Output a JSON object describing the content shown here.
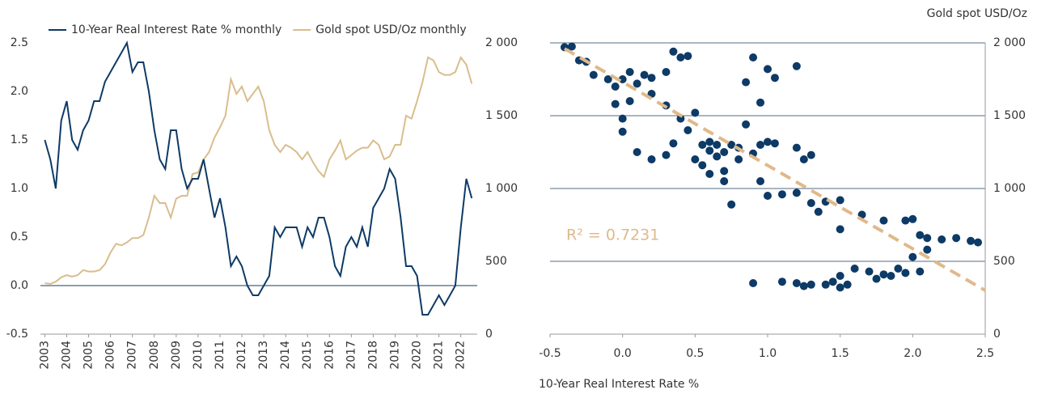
{
  "chart_data": [
    {
      "type": "line",
      "x": [
        2003,
        2003.25,
        2003.5,
        2003.75,
        2004,
        2004.25,
        2004.5,
        2004.75,
        2005,
        2005.25,
        2005.5,
        2005.75,
        2006,
        2006.25,
        2006.5,
        2006.75,
        2007,
        2007.25,
        2007.5,
        2007.75,
        2008,
        2008.25,
        2008.5,
        2008.75,
        2009,
        2009.25,
        2009.5,
        2009.75,
        2010,
        2010.25,
        2010.5,
        2010.75,
        2011,
        2011.25,
        2011.5,
        2011.75,
        2012,
        2012.25,
        2012.5,
        2012.75,
        2013,
        2013.25,
        2013.5,
        2013.75,
        2014,
        2014.25,
        2014.5,
        2014.75,
        2015,
        2015.25,
        2015.5,
        2015.75,
        2016,
        2016.25,
        2016.5,
        2016.75,
        2017,
        2017.25,
        2017.5,
        2017.75,
        2018,
        2018.25,
        2018.5,
        2018.75,
        2019,
        2019.25,
        2019.5,
        2019.75,
        2020,
        2020.25,
        2020.5,
        2020.75,
        2021,
        2021.25,
        2021.5,
        2021.75,
        2022,
        2022.25,
        2022.5
      ],
      "xlim": [
        2002.8,
        2022.75
      ],
      "xticks": [
        2003,
        2004,
        2005,
        2006,
        2007,
        2008,
        2009,
        2010,
        2011,
        2012,
        2013,
        2014,
        2015,
        2016,
        2017,
        2018,
        2019,
        2020,
        2021,
        2022
      ],
      "ylim": [
        -0.5,
        2.5
      ],
      "yticks": [
        -0.5,
        {
          "value": 0,
          "label": "0.0"
        },
        0.5,
        {
          "value": 1,
          "label": "1.0"
        },
        1.5,
        {
          "value": 2,
          "label": "2.0"
        },
        2.5
      ],
      "y2lim": [
        0,
        2000
      ],
      "y2ticks": [
        0,
        500,
        {
          "value": 1000,
          "label": "1 000"
        },
        {
          "value": 1500,
          "label": "1 500"
        },
        {
          "value": 2000,
          "label": "2 000"
        }
      ],
      "series": [
        {
          "name": "10-Year Real Interest Rate % monthly",
          "color": "#0d3a66",
          "values": [
            1.5,
            1.3,
            1.0,
            1.7,
            1.9,
            1.5,
            1.4,
            1.6,
            1.7,
            1.9,
            1.9,
            2.1,
            2.2,
            2.3,
            2.4,
            2.5,
            2.2,
            2.3,
            2.3,
            2.0,
            1.6,
            1.3,
            1.2,
            1.6,
            1.6,
            1.2,
            1.0,
            1.1,
            1.1,
            1.3,
            1.0,
            0.7,
            0.9,
            0.6,
            0.2,
            0.3,
            0.2,
            0.0,
            -0.1,
            -0.1,
            0.0,
            0.1,
            0.6,
            0.5,
            0.6,
            0.6,
            0.6,
            0.4,
            0.6,
            0.5,
            0.7,
            0.7,
            0.5,
            0.2,
            0.1,
            0.4,
            0.5,
            0.4,
            0.6,
            0.4,
            0.8,
            0.9,
            1.0,
            1.2,
            1.1,
            0.7,
            0.2,
            0.2,
            0.1,
            -0.3,
            -0.3,
            -0.2,
            -0.1,
            -0.2,
            -0.1,
            0.0,
            0.6,
            1.1,
            0.9
          ]
        },
        {
          "name": "Gold spot USD/Oz monthly",
          "color": "#d9bd8c",
          "axis": "y2",
          "values": [
            350,
            345,
            360,
            390,
            405,
            395,
            405,
            440,
            430,
            430,
            440,
            480,
            560,
            620,
            610,
            630,
            660,
            660,
            680,
            800,
            950,
            900,
            900,
            800,
            930,
            950,
            950,
            1100,
            1110,
            1200,
            1250,
            1350,
            1420,
            1500,
            1750,
            1650,
            1700,
            1600,
            1650,
            1700,
            1600,
            1400,
            1300,
            1250,
            1300,
            1280,
            1250,
            1200,
            1250,
            1180,
            1120,
            1080,
            1200,
            1260,
            1330,
            1200,
            1230,
            1260,
            1280,
            1280,
            1330,
            1300,
            1200,
            1220,
            1300,
            1300,
            1500,
            1480,
            1600,
            1730,
            1900,
            1880,
            1800,
            1780,
            1780,
            1800,
            1900,
            1850,
            1720
          ]
        }
      ]
    },
    {
      "type": "scatter",
      "title": "Gold spot USD/Oz",
      "x_label": "10-Year Real Interest Rate %",
      "annotation": "R² = 0.7231",
      "color": "#0d3a66",
      "xlim": [
        -0.5,
        2.5
      ],
      "xticks": [
        -0.5,
        {
          "value": 0,
          "label": "0.0"
        },
        0.5,
        {
          "value": 1,
          "label": "1.0"
        },
        1.5,
        {
          "value": 2,
          "label": "2.0"
        },
        2.5
      ],
      "ylim": [
        0,
        2000
      ],
      "yticks": [
        0,
        500,
        {
          "value": 1000,
          "label": "1 000"
        },
        {
          "value": 1500,
          "label": "1 500"
        },
        {
          "value": 2000,
          "label": "2 000"
        }
      ],
      "grid": true,
      "x": [
        -0.4,
        -0.35,
        -0.3,
        -0.25,
        -0.2,
        -0.1,
        -0.05,
        0,
        0.05,
        0.1,
        0.15,
        0.2,
        -0.05,
        0.05,
        0,
        0,
        0.2,
        0.3,
        0.35,
        0.4,
        0.45,
        0.3,
        0.4,
        0.35,
        0.45,
        0.5,
        0.55,
        0.6,
        0.65,
        0.7,
        0.75,
        0.5,
        0.55,
        0.6,
        0.7,
        0.8,
        0.9,
        0.95,
        1.0,
        1.05,
        0.85,
        0.9,
        0.85,
        0.95,
        1.0,
        1.05,
        1.2,
        1.2,
        1.3,
        1.25,
        0.95,
        1.0,
        1.1,
        1.2,
        1.3,
        1.4,
        1.5,
        1.35,
        1.5,
        1.65,
        1.8,
        1.95,
        2.0,
        2.05,
        2.1,
        2.2,
        2.3,
        2.4,
        2.45,
        2.1,
        2.0,
        1.9,
        1.8,
        1.7,
        1.6,
        1.5,
        1.45,
        1.4,
        1.3,
        1.25,
        1.2,
        1.1,
        0.9,
        1.5,
        1.55,
        1.75,
        1.85,
        1.95,
        2.05,
        0.1,
        0.2,
        0.3,
        0.6,
        0.65,
        0.8,
        0.7,
        0.75
      ],
      "values": [
        1970,
        1975,
        1880,
        1870,
        1780,
        1750,
        1700,
        1750,
        1800,
        1720,
        1780,
        1760,
        1580,
        1600,
        1480,
        1390,
        1650,
        1570,
        1940,
        1900,
        1910,
        1800,
        1480,
        1310,
        1400,
        1520,
        1300,
        1260,
        1220,
        1250,
        1300,
        1200,
        1160,
        1100,
        1050,
        1200,
        1240,
        1300,
        1320,
        1310,
        1440,
        1900,
        1730,
        1590,
        1820,
        1760,
        1840,
        1280,
        1230,
        1200,
        1050,
        950,
        960,
        970,
        900,
        910,
        920,
        840,
        720,
        820,
        780,
        780,
        790,
        680,
        660,
        650,
        660,
        640,
        630,
        580,
        530,
        450,
        410,
        430,
        450,
        400,
        360,
        340,
        340,
        330,
        350,
        360,
        350,
        320,
        340,
        380,
        400,
        420,
        430,
        1250,
        1200,
        1230,
        1320,
        1300,
        1280,
        1120,
        890
      ],
      "trend": {
        "color": "#e0b98a",
        "x": [
          -0.4,
          2.5
        ],
        "values": [
          1960,
          300
        ]
      }
    }
  ]
}
